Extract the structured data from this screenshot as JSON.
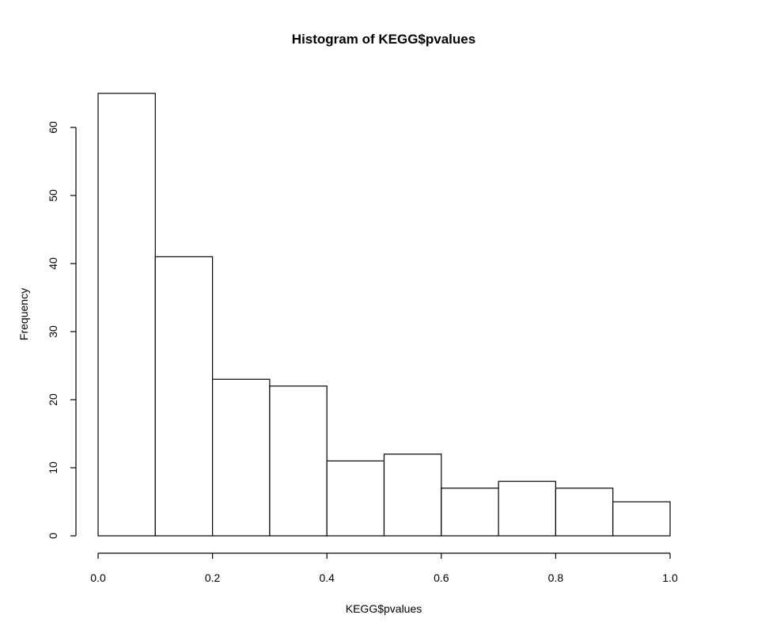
{
  "chart_data": {
    "type": "bar",
    "title": "Histogram of KEGG$pvalues",
    "xlabel": "KEGG$pvalues",
    "ylabel": "Frequency",
    "bins": [
      {
        "x0": 0.0,
        "x1": 0.1,
        "count": 65
      },
      {
        "x0": 0.1,
        "x1": 0.2,
        "count": 41
      },
      {
        "x0": 0.2,
        "x1": 0.3,
        "count": 23
      },
      {
        "x0": 0.3,
        "x1": 0.4,
        "count": 22
      },
      {
        "x0": 0.4,
        "x1": 0.5,
        "count": 11
      },
      {
        "x0": 0.5,
        "x1": 0.6,
        "count": 12
      },
      {
        "x0": 0.6,
        "x1": 0.7,
        "count": 7
      },
      {
        "x0": 0.7,
        "x1": 0.8,
        "count": 8
      },
      {
        "x0": 0.8,
        "x1": 0.9,
        "count": 7
      },
      {
        "x0": 0.9,
        "x1": 1.0,
        "count": 5
      }
    ],
    "xlim": [
      0,
      1
    ],
    "ylim": [
      0,
      65
    ],
    "x_ticks": [
      0.0,
      0.2,
      0.4,
      0.6,
      0.8,
      1.0
    ],
    "x_tick_labels": [
      "0.0",
      "0.2",
      "0.4",
      "0.6",
      "0.8",
      "1.0"
    ],
    "y_ticks": [
      0,
      10,
      20,
      30,
      40,
      50,
      60
    ],
    "y_tick_labels": [
      "0",
      "10",
      "20",
      "30",
      "40",
      "50",
      "60"
    ],
    "grid": false,
    "legend": "none"
  }
}
